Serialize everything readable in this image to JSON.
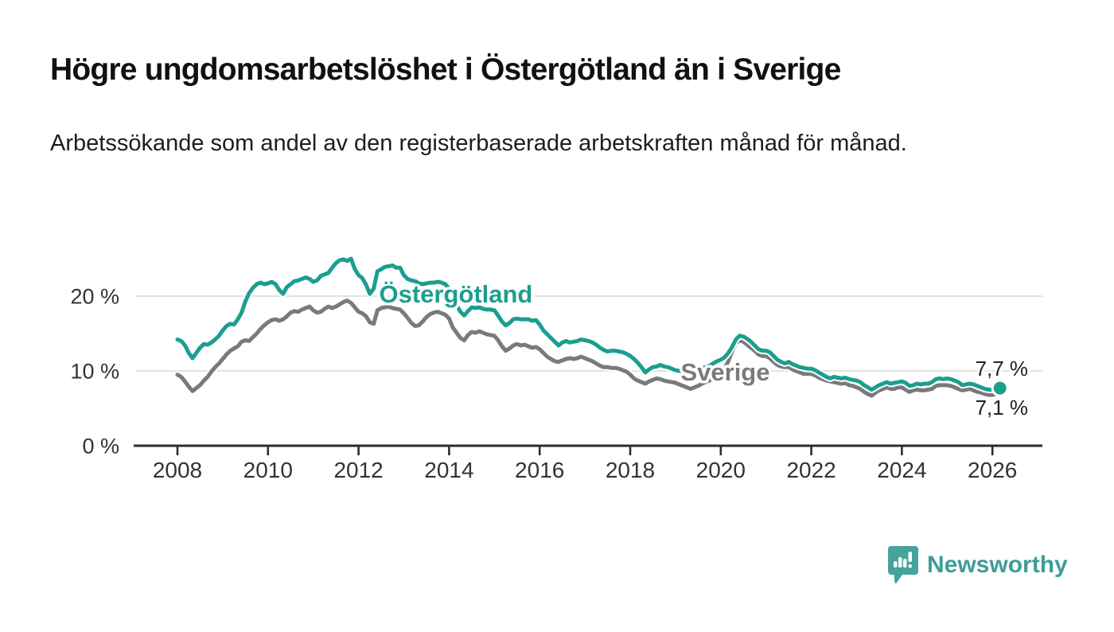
{
  "header": {
    "title": "Högre ungdomsarbetslöshet i Östergötland än i Sverige",
    "subtitle": "Arbetssökande som andel av den registerbaserade arbetskraften månad för månad."
  },
  "branding": {
    "logo_text": "Newsworthy",
    "logo_color": "#45a39b"
  },
  "colors": {
    "accent_teal": "#1c9e8f",
    "series_gray": "#7a7a7c",
    "axis": "#2d2d2d",
    "tick_label": "#333333",
    "gridline": "#d8d8d8",
    "annotation": "#222222"
  },
  "chart_data": {
    "type": "line",
    "title": "Högre ungdomsarbetslöshet i Östergötland än i Sverige",
    "subtitle": "Arbetssökande som andel av den registerbaserade arbetskraften månad för månad.",
    "xlabel": "",
    "ylabel": "",
    "xlim": [
      2007.1,
      2027.1
    ],
    "ylim": [
      0,
      26.5
    ],
    "grid": "horizontal-y",
    "legend_position": "inline-labels",
    "x_ticks": [
      2008,
      2010,
      2012,
      2014,
      2016,
      2018,
      2020,
      2022,
      2024,
      2026
    ],
    "y_ticks": [
      {
        "value": 0,
        "label": "0 %"
      },
      {
        "value": 10,
        "label": "10 %"
      },
      {
        "value": 20,
        "label": "20 %"
      }
    ],
    "series": [
      {
        "name": "Östergötland",
        "color": "#1c9e8f",
        "end_dot": true,
        "end_label": "7,7 %",
        "label": {
          "text": "Östergötland",
          "x": 2014.15,
          "y": 20.3
        },
        "start_year": 2008,
        "points_per_year": 12,
        "values": [
          14.2,
          14.0,
          13.4,
          12.4,
          11.7,
          12.4,
          13.1,
          13.6,
          13.5,
          13.8,
          14.2,
          14.7,
          15.4,
          16.0,
          16.3,
          16.2,
          16.9,
          17.8,
          19.3,
          20.4,
          21.1,
          21.6,
          21.8,
          21.6,
          21.7,
          21.9,
          21.6,
          20.8,
          20.3,
          21.2,
          21.6,
          22.0,
          22.1,
          22.3,
          22.5,
          22.3,
          21.9,
          22.1,
          22.7,
          22.9,
          23.1,
          23.8,
          24.4,
          24.8,
          24.9,
          24.7,
          25.0,
          23.6,
          22.8,
          22.4,
          21.5,
          20.3,
          21.0,
          23.3,
          23.6,
          23.9,
          24.0,
          24.1,
          23.8,
          23.8,
          22.8,
          22.3,
          22.1,
          22.0,
          21.7,
          21.6,
          21.7,
          21.8,
          21.8,
          21.9,
          21.8,
          21.6,
          21.0,
          20.0,
          18.8,
          17.9,
          17.4,
          18.0,
          18.5,
          18.4,
          18.5,
          18.3,
          18.2,
          18.2,
          18.1,
          17.4,
          16.6,
          16.1,
          16.4,
          16.9,
          17.0,
          16.9,
          16.9,
          16.9,
          16.7,
          16.8,
          16.2,
          15.4,
          14.9,
          14.4,
          13.9,
          13.4,
          13.8,
          14.0,
          13.8,
          13.9,
          14.0,
          14.2,
          14.1,
          14.0,
          13.8,
          13.5,
          13.1,
          12.8,
          12.6,
          12.7,
          12.7,
          12.6,
          12.5,
          12.3,
          12.0,
          11.6,
          11.1,
          10.5,
          9.8,
          10.2,
          10.5,
          10.6,
          10.8,
          10.6,
          10.5,
          10.3,
          10.1,
          10.0,
          10.0,
          9.9,
          9.8,
          10.0,
          10.2,
          10.4,
          10.5,
          10.7,
          11.0,
          11.3,
          11.5,
          11.8,
          12.4,
          13.2,
          14.2,
          14.7,
          14.6,
          14.3,
          13.9,
          13.4,
          12.9,
          12.7,
          12.7,
          12.5,
          12.0,
          11.5,
          11.2,
          11.0,
          11.2,
          10.9,
          10.7,
          10.5,
          10.4,
          10.3,
          10.3,
          10.1,
          9.8,
          9.5,
          9.2,
          9.0,
          9.2,
          9.1,
          9.0,
          9.1,
          8.9,
          8.8,
          8.7,
          8.5,
          8.1,
          7.8,
          7.5,
          7.8,
          8.1,
          8.3,
          8.5,
          8.3,
          8.4,
          8.5,
          8.6,
          8.4,
          8.0,
          8.1,
          8.3,
          8.2,
          8.3,
          8.3,
          8.5,
          8.9,
          9.0,
          8.9,
          9.0,
          8.9,
          8.7,
          8.5,
          8.1,
          8.2,
          8.3,
          8.2,
          8.0,
          7.8,
          7.6,
          7.5,
          7.5,
          7.6,
          7.7
        ]
      },
      {
        "name": "Sverige",
        "color": "#7a7a7c",
        "end_dot": false,
        "end_label": "7,1 %",
        "label": {
          "text": "Sverige",
          "x": 2020.1,
          "y": 9.9
        },
        "start_year": 2008,
        "points_per_year": 12,
        "values": [
          9.5,
          9.2,
          8.6,
          7.9,
          7.3,
          7.7,
          8.1,
          8.7,
          9.2,
          9.9,
          10.5,
          11.0,
          11.6,
          12.2,
          12.7,
          13.0,
          13.3,
          13.9,
          14.1,
          14.0,
          14.5,
          15.0,
          15.6,
          16.1,
          16.5,
          16.8,
          16.9,
          16.7,
          16.9,
          17.3,
          17.8,
          18.0,
          17.9,
          18.2,
          18.4,
          18.6,
          18.1,
          17.8,
          17.9,
          18.3,
          18.6,
          18.4,
          18.6,
          18.9,
          19.2,
          19.4,
          19.1,
          18.5,
          17.9,
          17.7,
          17.3,
          16.5,
          16.3,
          18.1,
          18.4,
          18.5,
          18.6,
          18.4,
          18.3,
          18.2,
          17.7,
          17.1,
          16.4,
          16.0,
          16.1,
          16.6,
          17.2,
          17.6,
          17.8,
          17.9,
          17.7,
          17.5,
          17.0,
          15.8,
          15.1,
          14.4,
          14.1,
          14.8,
          15.2,
          15.1,
          15.3,
          15.1,
          14.9,
          14.8,
          14.7,
          14.1,
          13.3,
          12.7,
          13.0,
          13.4,
          13.6,
          13.4,
          13.5,
          13.3,
          13.1,
          13.2,
          12.9,
          12.4,
          11.9,
          11.6,
          11.3,
          11.2,
          11.4,
          11.6,
          11.7,
          11.6,
          11.7,
          11.9,
          11.7,
          11.5,
          11.3,
          11.0,
          10.7,
          10.5,
          10.5,
          10.4,
          10.4,
          10.3,
          10.1,
          9.9,
          9.5,
          9.0,
          8.7,
          8.5,
          8.3,
          8.6,
          8.8,
          9.0,
          8.9,
          8.7,
          8.6,
          8.5,
          8.4,
          8.2,
          8.0,
          7.8,
          7.6,
          7.8,
          8.0,
          8.3,
          8.5,
          8.7,
          9.0,
          9.4,
          9.8,
          10.3,
          11.3,
          12.6,
          13.7,
          14.1,
          13.9,
          13.5,
          13.1,
          12.7,
          12.2,
          12.0,
          12.0,
          11.7,
          11.2,
          10.8,
          10.6,
          10.5,
          10.5,
          10.2,
          10.0,
          9.8,
          9.6,
          9.6,
          9.6,
          9.4,
          9.1,
          8.9,
          8.7,
          8.6,
          8.5,
          8.4,
          8.3,
          8.4,
          8.1,
          8.0,
          7.8,
          7.6,
          7.2,
          6.9,
          6.7,
          7.1,
          7.4,
          7.6,
          7.8,
          7.6,
          7.6,
          7.8,
          7.8,
          7.5,
          7.2,
          7.4,
          7.5,
          7.4,
          7.4,
          7.5,
          7.6,
          8.0,
          8.1,
          8.1,
          8.1,
          8.0,
          7.8,
          7.6,
          7.4,
          7.5,
          7.6,
          7.4,
          7.2,
          7.1,
          6.9,
          6.8,
          6.8,
          6.9,
          7.1
        ]
      }
    ],
    "annotations": [
      {
        "text": "7,7 %",
        "x": 2025.62,
        "y": 10.32
      },
      {
        "text": "7,1 %",
        "x": 2025.62,
        "y": 5.1
      }
    ]
  }
}
